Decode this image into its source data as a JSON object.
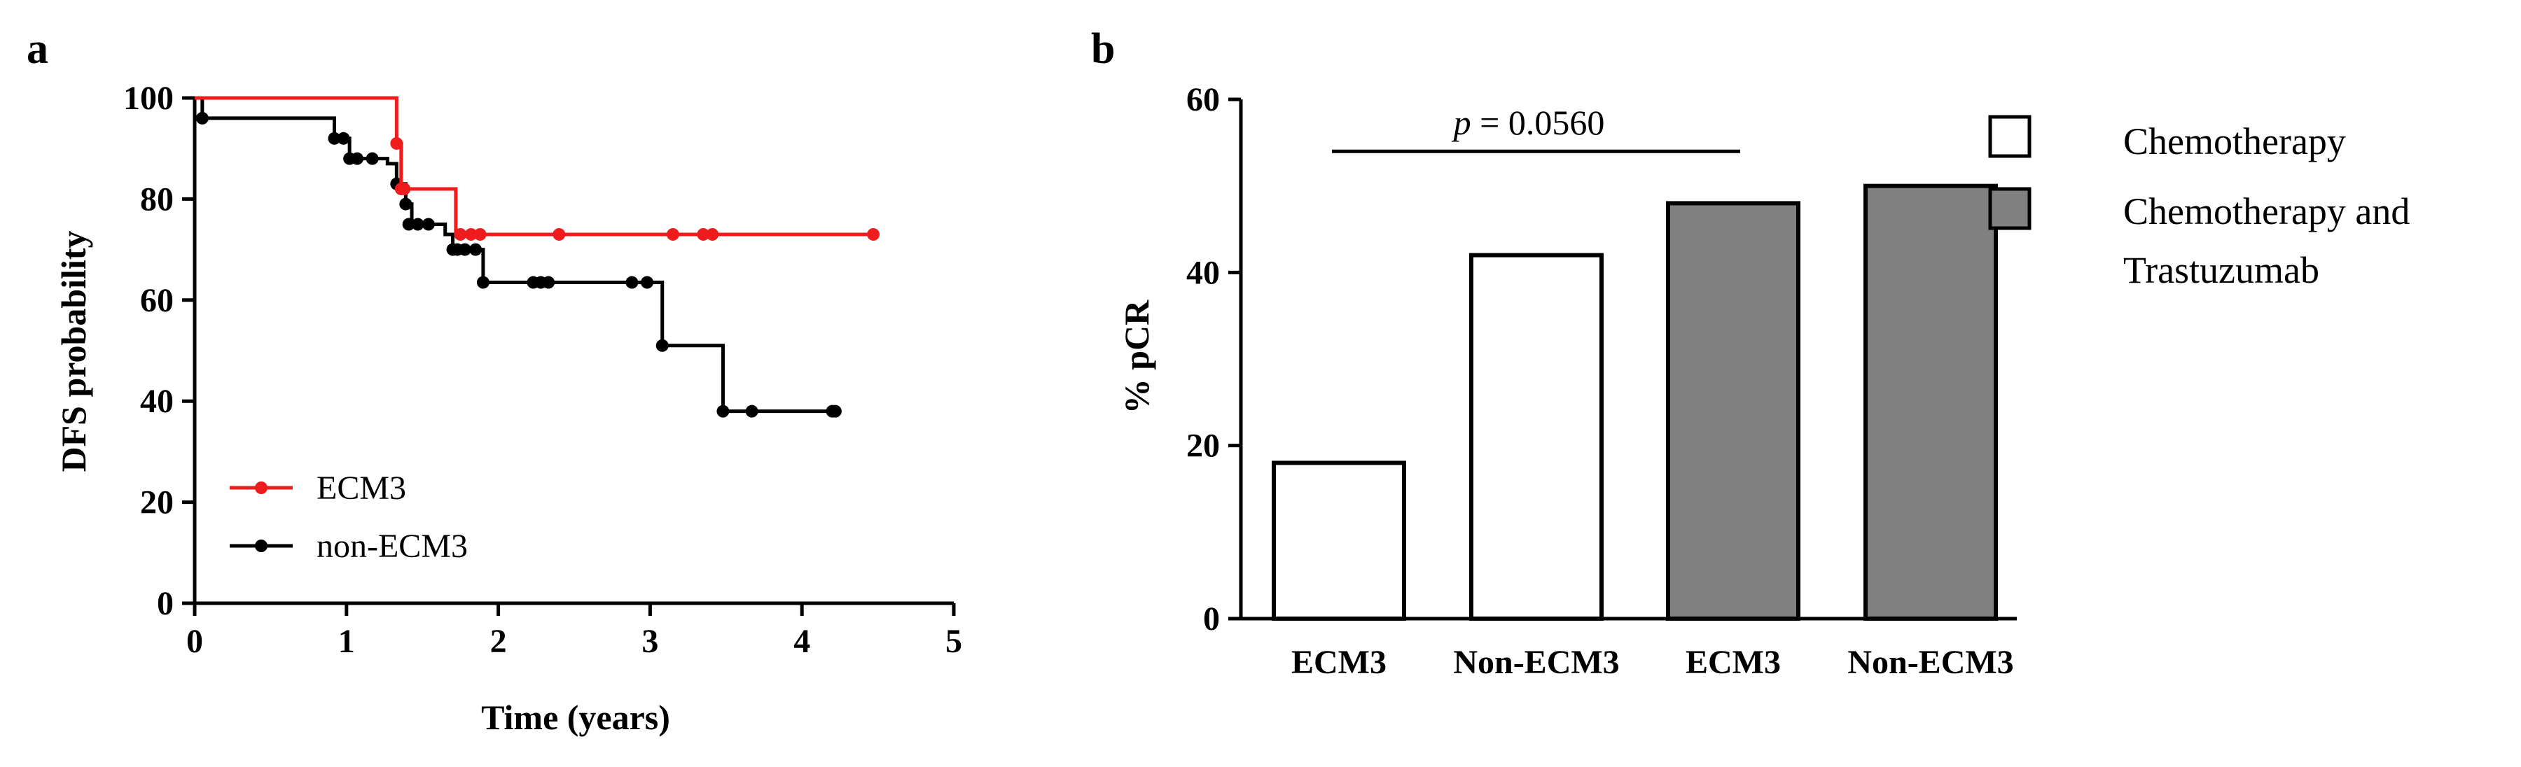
{
  "colors": {
    "ecm3": "#ee1c1c",
    "non_ecm3": "#000000",
    "bar_gray": "#808080",
    "bar_white": "#ffffff"
  },
  "chart_data": [
    {
      "panel_label": "a",
      "type": "line",
      "subtype": "kaplan-meier step",
      "xlabel": "Time (years)",
      "ylabel": "DFS probability",
      "xlim": [
        0,
        5
      ],
      "ylim": [
        0,
        100
      ],
      "xticks": [
        0,
        1,
        2,
        3,
        4,
        5
      ],
      "yticks": [
        0,
        20,
        40,
        60,
        80,
        100
      ],
      "legend_position": "bottom-left",
      "series": [
        {
          "name": "ECM3",
          "color": "#ee1c1c",
          "steps": [
            [
              0,
              100
            ],
            [
              1.33,
              91
            ],
            [
              1.36,
              82
            ],
            [
              1.72,
              73
            ]
          ],
          "end_x": 4.47,
          "censored": [
            [
              1.33,
              91
            ],
            [
              1.36,
              82
            ],
            [
              1.38,
              82
            ],
            [
              1.75,
              73
            ],
            [
              1.82,
              73
            ],
            [
              1.88,
              73
            ],
            [
              2.4,
              73
            ],
            [
              3.15,
              73
            ],
            [
              3.35,
              73
            ],
            [
              3.41,
              73
            ],
            [
              4.47,
              73
            ]
          ]
        },
        {
          "name": "non-ECM3",
          "color": "#000000",
          "steps": [
            [
              0,
              100
            ],
            [
              0.05,
              96
            ],
            [
              0.92,
              92
            ],
            [
              1.02,
              88
            ],
            [
              1.27,
              87
            ],
            [
              1.33,
              83
            ],
            [
              1.39,
              79
            ],
            [
              1.43,
              75
            ],
            [
              1.65,
              73
            ],
            [
              1.7,
              70
            ],
            [
              1.9,
              63.5
            ],
            [
              3.08,
              51
            ],
            [
              3.48,
              38
            ]
          ],
          "end_x": 4.22,
          "censored": [
            [
              0.05,
              96
            ],
            [
              0.92,
              92
            ],
            [
              0.98,
              92
            ],
            [
              1.02,
              88
            ],
            [
              1.07,
              88
            ],
            [
              1.17,
              88
            ],
            [
              1.33,
              83
            ],
            [
              1.39,
              79
            ],
            [
              1.41,
              75
            ],
            [
              1.47,
              75
            ],
            [
              1.54,
              75
            ],
            [
              1.7,
              70
            ],
            [
              1.73,
              70
            ],
            [
              1.78,
              70
            ],
            [
              1.85,
              70
            ],
            [
              1.9,
              63.5
            ],
            [
              2.23,
              63.5
            ],
            [
              2.28,
              63.5
            ],
            [
              2.33,
              63.5
            ],
            [
              2.88,
              63.5
            ],
            [
              2.98,
              63.5
            ],
            [
              3.08,
              51
            ],
            [
              3.48,
              38
            ],
            [
              3.67,
              38
            ],
            [
              4.2,
              38
            ],
            [
              4.22,
              38
            ]
          ]
        }
      ]
    },
    {
      "panel_label": "b",
      "type": "bar",
      "ylabel": "% pCR",
      "ylim": [
        0,
        60
      ],
      "yticks": [
        0,
        20,
        40,
        60
      ],
      "categories": [
        "ECM3",
        "Non-ECM3",
        "ECM3",
        "Non-ECM3"
      ],
      "values": [
        18,
        42,
        48,
        50
      ],
      "bar_groups": [
        "Chemotherapy",
        "Chemotherapy",
        "Chemotherapy and Trastuzumab",
        "Chemotherapy and Trastuzumab"
      ],
      "legend_position": "right",
      "legend": [
        {
          "lines": [
            "Chemotherapy"
          ],
          "fill": "#ffffff"
        },
        {
          "lines": [
            "Chemotherapy and",
            "Trastuzumab"
          ],
          "fill": "#808080"
        }
      ],
      "annotation": {
        "prefix": "p",
        "value": " = 0.0560",
        "from_bar": 0,
        "to_bar": 2,
        "y": 54
      }
    }
  ]
}
